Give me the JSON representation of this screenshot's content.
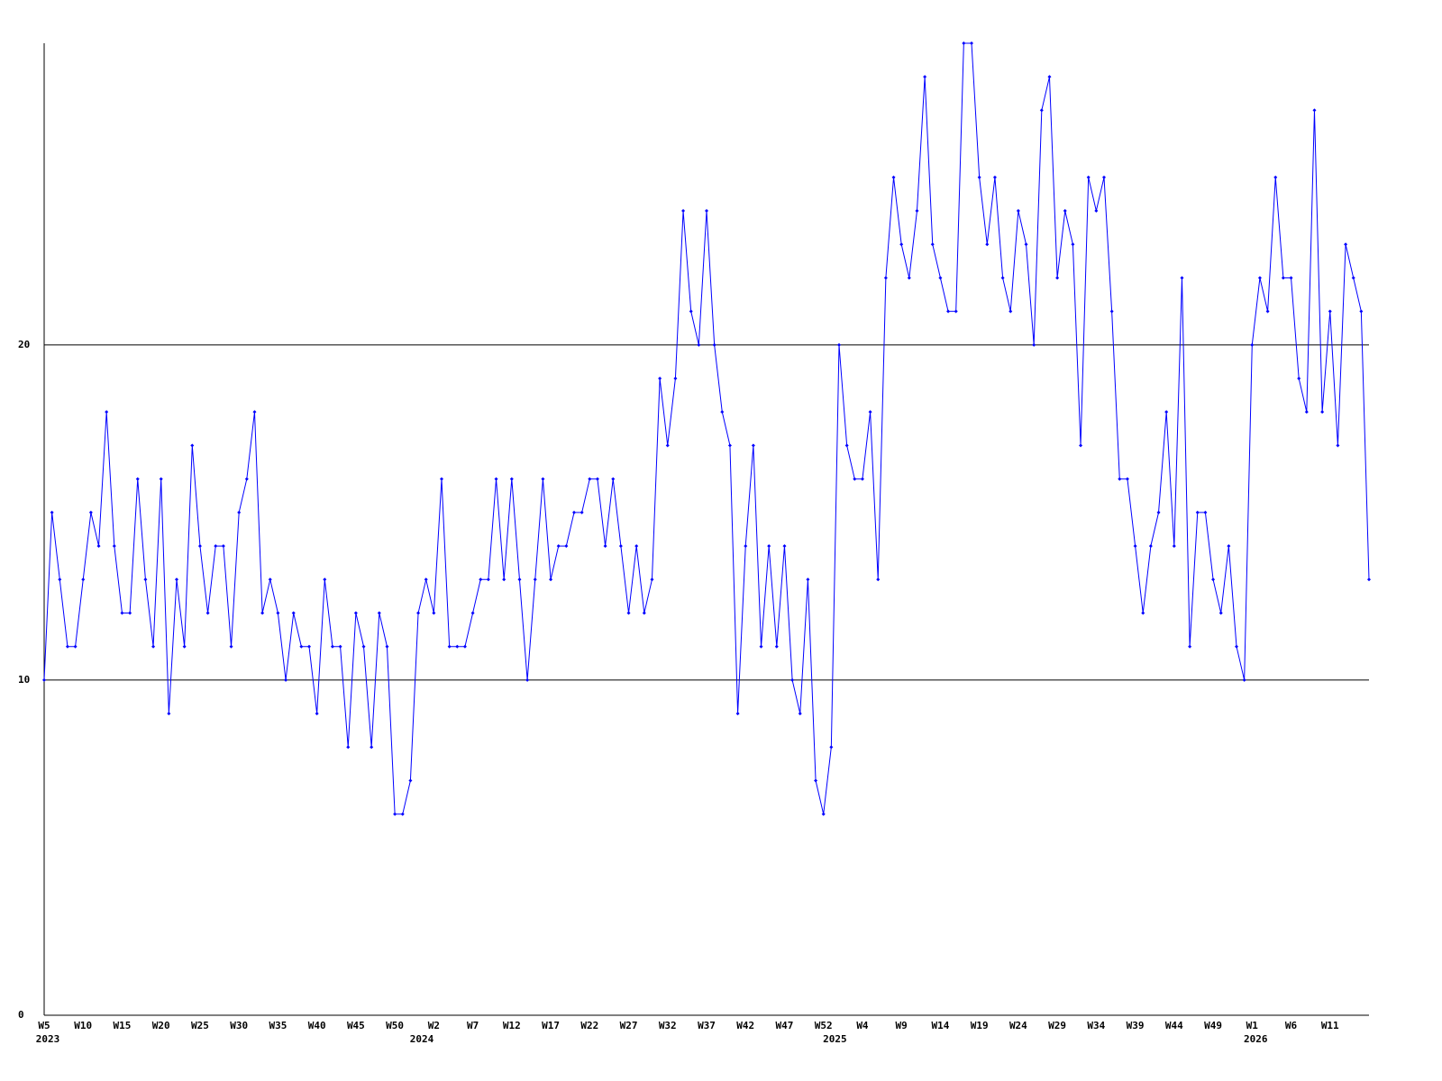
{
  "chart_data": {
    "type": "line",
    "categories": [
      "W5",
      null,
      null,
      null,
      null,
      "W10",
      null,
      null,
      null,
      null,
      "W15",
      null,
      null,
      null,
      null,
      "W20",
      null,
      null,
      null,
      null,
      "W25",
      null,
      null,
      null,
      null,
      "W30",
      null,
      null,
      null,
      null,
      "W35",
      null,
      null,
      null,
      null,
      "W40",
      null,
      null,
      null,
      null,
      "W45",
      null,
      null,
      null,
      null,
      "W50",
      null,
      null,
      null,
      null,
      "W2",
      null,
      null,
      null,
      null,
      "W7",
      null,
      null,
      null,
      null,
      "W12",
      null,
      null,
      null,
      null,
      "W17",
      null,
      null,
      null,
      null,
      "W22",
      null,
      null,
      null,
      null,
      "W27",
      null,
      null,
      null,
      null,
      "W32",
      null,
      null,
      null,
      null,
      "W37",
      null,
      null,
      null,
      null,
      "W42",
      null,
      null,
      null,
      null,
      "W47",
      null,
      null,
      null,
      null,
      "W52",
      null,
      null,
      null,
      null,
      "W4",
      null,
      null,
      null,
      null,
      "W9",
      null,
      null,
      null,
      null,
      "W14",
      null,
      null,
      null,
      null,
      "W19",
      null,
      null,
      null,
      null,
      "W24",
      null,
      null,
      null,
      null,
      "W29",
      null,
      null,
      null,
      null,
      "W34",
      null,
      null,
      null,
      null,
      "W39",
      null,
      null,
      null,
      null,
      "W44",
      null,
      null,
      null,
      null,
      "W49",
      null,
      null,
      null,
      null,
      "W1",
      null,
      null,
      null,
      null,
      "W6",
      null,
      null,
      null,
      null,
      "W11",
      null,
      null,
      null,
      null,
      null
    ],
    "years": [
      {
        "at": 0,
        "text": "2023"
      },
      {
        "at": 48,
        "text": "2024"
      },
      {
        "at": 101,
        "text": "2025"
      },
      {
        "at": 155,
        "text": "2026"
      }
    ],
    "values": [
      10,
      15,
      13,
      11,
      11,
      13,
      15,
      14,
      18,
      14,
      12,
      12,
      16,
      13,
      11,
      16,
      9,
      13,
      11,
      17,
      14,
      12,
      14,
      14,
      11,
      15,
      16,
      18,
      12,
      13,
      12,
      10,
      12,
      11,
      11,
      9,
      13,
      11,
      11,
      8,
      12,
      11,
      8,
      12,
      11,
      6,
      6,
      7,
      12,
      13,
      12,
      16,
      11,
      11,
      11,
      12,
      13,
      13,
      16,
      13,
      16,
      13,
      10,
      13,
      16,
      13,
      14,
      14,
      15,
      15,
      16,
      16,
      14,
      16,
      14,
      12,
      14,
      12,
      13,
      19,
      17,
      19,
      24,
      21,
      20,
      24,
      20,
      18,
      17,
      9,
      14,
      17,
      11,
      14,
      11,
      14,
      10,
      9,
      13,
      7,
      6,
      8,
      20,
      17,
      16,
      16,
      18,
      13,
      22,
      25,
      23,
      22,
      24,
      28,
      23,
      22,
      21,
      21,
      29,
      29,
      25,
      23,
      25,
      22,
      21,
      24,
      23,
      20,
      27,
      28,
      22,
      24,
      23,
      17,
      25,
      24,
      25,
      21,
      16,
      16,
      14,
      12,
      14,
      15,
      18,
      14,
      22,
      11,
      15,
      15,
      13,
      12,
      14,
      11,
      10,
      20,
      22,
      21,
      25,
      22,
      22,
      19,
      18,
      27,
      18,
      21,
      17,
      23,
      22,
      21,
      13
    ],
    "color": "#0000ff",
    "ylim": [
      0,
      29
    ],
    "yticks": [
      0,
      10,
      20
    ],
    "grid": true
  }
}
